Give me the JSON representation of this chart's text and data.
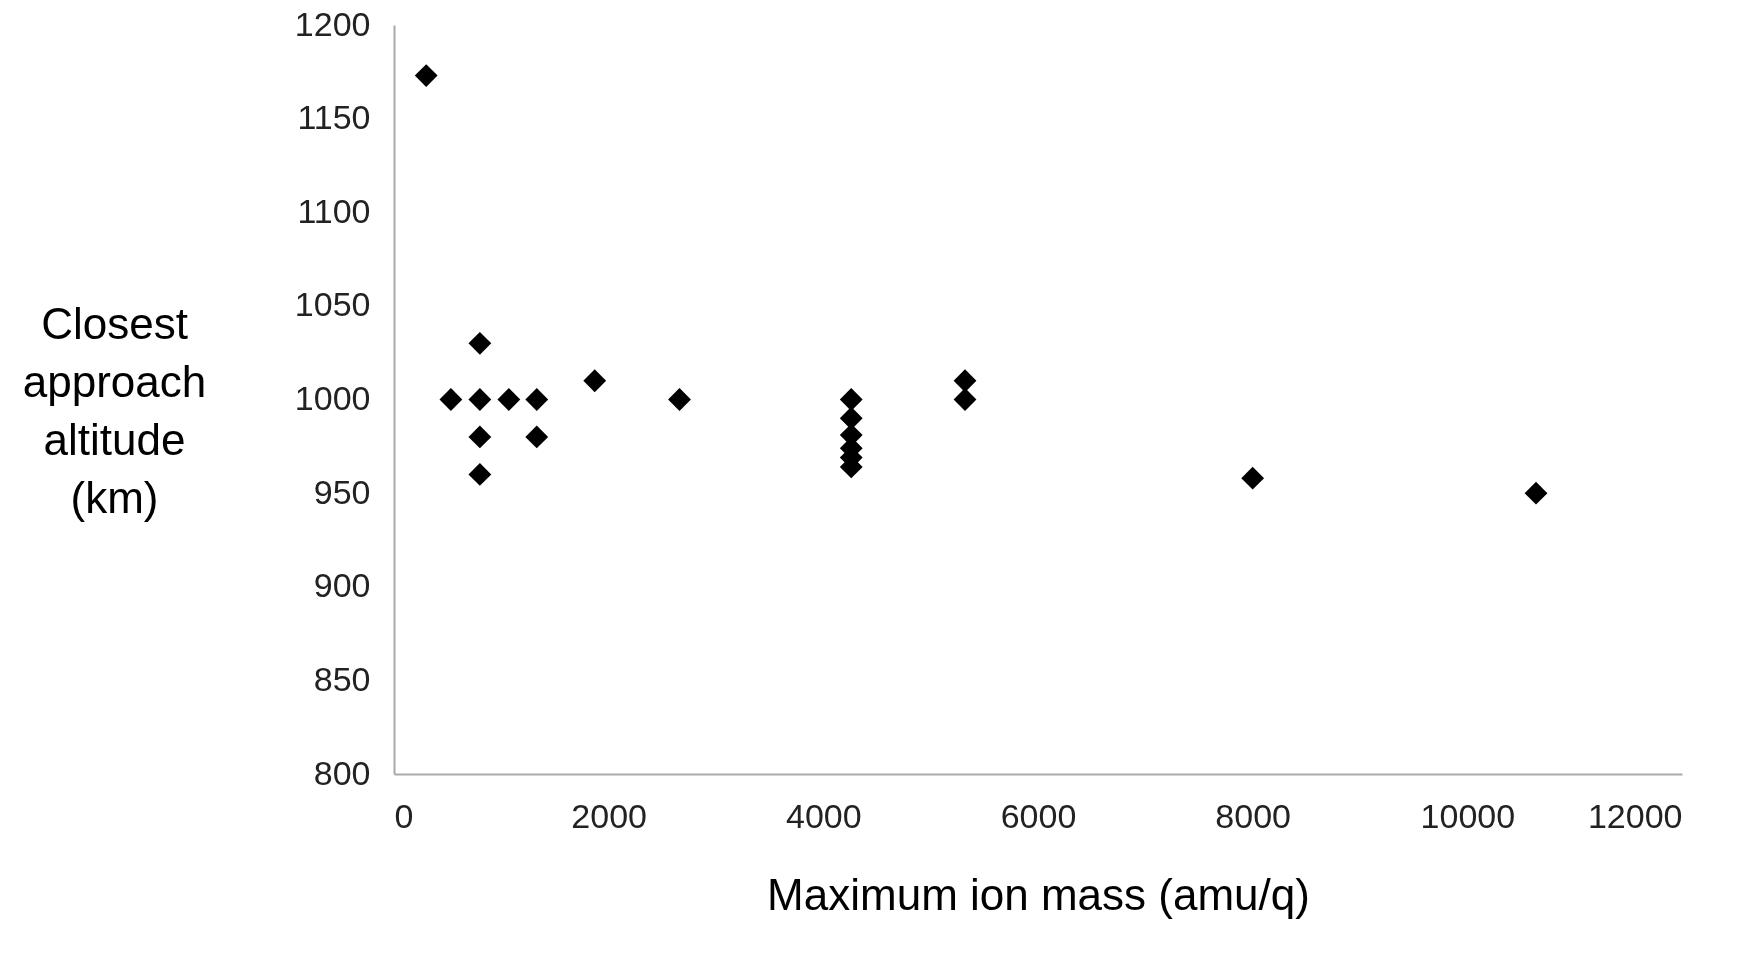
{
  "chart_data": {
    "type": "scatter",
    "xlabel": "Maximum ion mass (amu/q)",
    "ylabel": "Closest approach altitude (km)",
    "marker": "diamond",
    "grid": false,
    "xlim": [
      0,
      12000
    ],
    "xticks": [
      0,
      2000,
      4000,
      6000,
      8000,
      10000,
      12000
    ],
    "ylim": [
      800,
      1200
    ],
    "yticks": [
      800,
      850,
      900,
      950,
      1000,
      1050,
      1100,
      1150,
      1200
    ],
    "series": [
      {
        "color": "#000000",
        "x": [
          300,
          530,
          800,
          800,
          800,
          800,
          1070,
          1330,
          1330,
          1870,
          2660,
          4260,
          4260,
          4260,
          4260,
          4260,
          4260,
          5320,
          5320,
          8000,
          10640
        ],
        "values": [
          1173,
          1000,
          1030,
          1000,
          980,
          960,
          1000,
          1000,
          980,
          1010,
          1000,
          1000,
          990,
          981,
          974,
          969,
          964,
          1010,
          1000,
          958,
          950
        ]
      }
    ]
  }
}
